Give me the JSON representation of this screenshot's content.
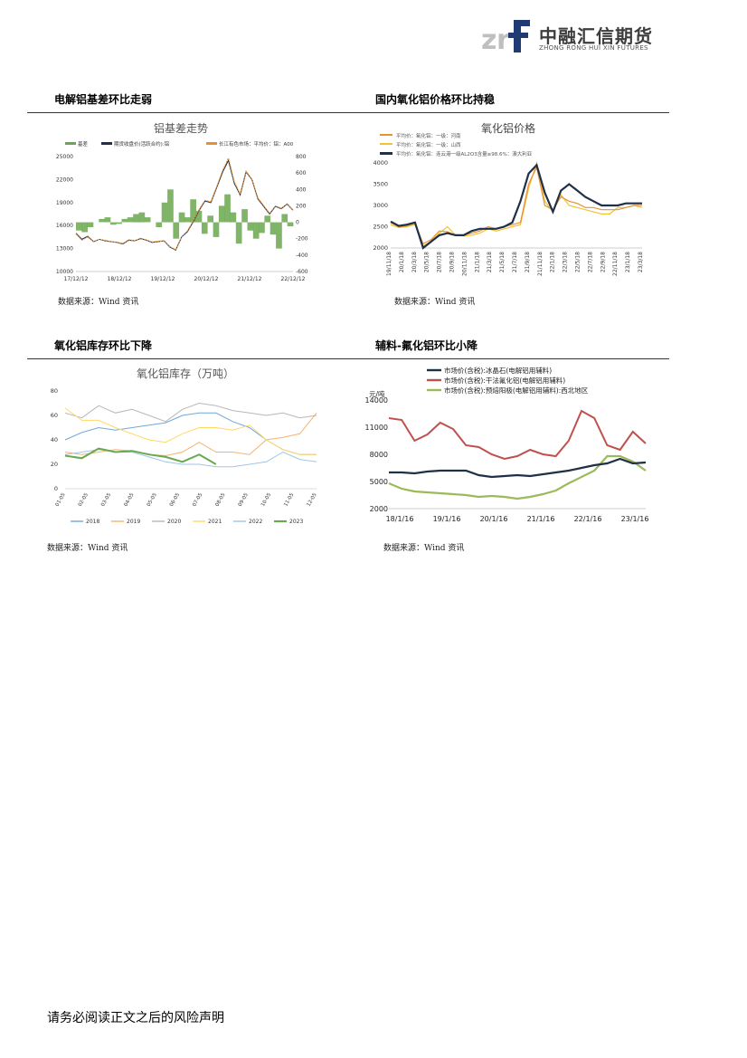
{
  "header": {
    "logo_mark": "zrf",
    "company_cn": "中融汇信期货",
    "company_en": "ZHONG RONG HUI XIN FUTURES"
  },
  "sections": [
    {
      "title": "电解铝基差环比走弱",
      "source": "数据来源：Wind 资讯"
    },
    {
      "title": "国内氧化铝价格环比持稳",
      "source": "数据来源：Wind 资讯"
    },
    {
      "title": "氧化铝库存环比下降",
      "source": "数据来源：Wind 资讯"
    },
    {
      "title": "辅料-氟化铝环比小降",
      "source": "数据来源：Wind 资讯"
    }
  ],
  "footer": {
    "text": "请务必阅读正文之后的风险声明"
  },
  "chart_data": [
    {
      "type": "line",
      "title": "铝基差走势",
      "legend": [
        "基差",
        "期货收盘价(活跃合约):铝",
        "长江有色市场：平均价：铝：A00"
      ],
      "legend_placement": "top",
      "x_ticks": [
        "17/12/12",
        "18/12/12",
        "19/12/12",
        "20/12/12",
        "21/12/12",
        "22/12/12"
      ],
      "y_left_ticks": [
        10000,
        13000,
        16000,
        19000,
        22000,
        25000
      ],
      "y_right_ticks": [
        -600,
        -400,
        -200,
        0,
        200,
        400,
        600,
        800
      ],
      "ylim_left": [
        10000,
        25000
      ],
      "ylim_right": [
        -600,
        800
      ],
      "colors": {
        "basis": "#6aa84f",
        "futures": "#1f3048",
        "spot": "#e69138"
      },
      "series": [
        {
          "name": "期货收盘价(活跃合约):铝",
          "values": [
            15000,
            14200,
            14600,
            13900,
            14200,
            14000,
            13900,
            13800,
            13600,
            14100,
            14000,
            14300,
            14100,
            13800,
            13900,
            14000,
            13200,
            12800,
            14500,
            15200,
            16500,
            18000,
            19200,
            19000,
            21000,
            23000,
            24500,
            21500,
            20000,
            23000,
            22000,
            19500,
            18500,
            17500,
            18500,
            18200,
            18800,
            18000
          ]
        },
        {
          "name": "长江有色市场：平均价：铝：A00",
          "values": [
            14900,
            14100,
            14500,
            13900,
            14200,
            14050,
            13900,
            13800,
            13650,
            14150,
            14000,
            14350,
            14100,
            13850,
            13950,
            14000,
            13250,
            12850,
            14550,
            15300,
            16600,
            18100,
            19300,
            19100,
            21100,
            23200,
            24800,
            21700,
            20100,
            23100,
            22000,
            19600,
            18600,
            17600,
            18550,
            18250,
            18850,
            18000
          ]
        },
        {
          "name": "基差",
          "values": [
            -100,
            -120,
            -60,
            0,
            40,
            60,
            -30,
            -20,
            40,
            60,
            100,
            120,
            60,
            0,
            -60,
            240,
            400,
            -200,
            120,
            60,
            280,
            140,
            -140,
            80,
            -180,
            200,
            340,
            120,
            -260,
            160,
            -100,
            -200,
            -130,
            80,
            -150,
            -320,
            100,
            -50
          ]
        }
      ]
    },
    {
      "type": "line",
      "title": "氧化铝价格",
      "legend": [
        "平均价：氧化铝：一级：河南",
        "平均价：氧化铝：一级：山西",
        "平均价：氧化铝：连云港一级AL2O3含量≥98.6%：澳大利亚"
      ],
      "legend_placement": "top-left",
      "x_ticks": [
        "19/11/18",
        "20/1/18",
        "20/3/18",
        "20/5/18",
        "20/7/18",
        "20/9/18",
        "20/11/18",
        "21/1/18",
        "21/3/18",
        "21/5/18",
        "21/7/18",
        "21/9/18",
        "21/11/18",
        "22/1/18",
        "22/3/18",
        "22/5/18",
        "22/7/18",
        "22/9/18",
        "22/11/18",
        "23/1/18",
        "23/3/18"
      ],
      "y_ticks": [
        2000,
        2500,
        3000,
        3500,
        4000
      ],
      "ylim": [
        2000,
        4000
      ],
      "colors": {
        "henan": "#e69138",
        "shanxi": "#f1c232",
        "australia": "#1f3048"
      },
      "series": [
        {
          "name": "平均价：氧化铝：一级：河南",
          "values": [
            2600,
            2500,
            2520,
            2580,
            2100,
            2200,
            2400,
            2380,
            2300,
            2300,
            2350,
            2400,
            2500,
            2450,
            2500,
            2550,
            2600,
            3500,
            3900,
            3000,
            2900,
            3200,
            3100,
            3050,
            2950,
            2950,
            2900,
            2900,
            2900,
            2950,
            3000,
            3000
          ]
        },
        {
          "name": "平均价：氧化铝：一级：山西",
          "values": [
            2550,
            2480,
            2500,
            2550,
            2050,
            2150,
            2350,
            2500,
            2300,
            2280,
            2300,
            2350,
            2450,
            2400,
            2450,
            2500,
            2550,
            3400,
            4000,
            3100,
            2850,
            3250,
            3000,
            2950,
            2900,
            2850,
            2800,
            2800,
            2950,
            2950,
            3000,
            2950
          ]
        },
        {
          "name": "平均价：氧化铝：连云港一级AL2O3含量≥98.6%：澳大利亚",
          "values": [
            2620,
            2520,
            2550,
            2600,
            2000,
            2150,
            2300,
            2350,
            2300,
            2300,
            2400,
            2450,
            2450,
            2450,
            2500,
            2600,
            3100,
            3750,
            3950,
            3300,
            2850,
            3350,
            3500,
            3350,
            3200,
            3100,
            3000,
            3000,
            3000,
            3050,
            3050,
            3050
          ]
        }
      ]
    },
    {
      "type": "line",
      "title": "氧化铝库存（万吨）",
      "legend": [
        "2018",
        "2019",
        "2020",
        "2021",
        "2022",
        "2023"
      ],
      "legend_placement": "bottom",
      "x_ticks": [
        "01-05",
        "02-05",
        "03-05",
        "04-05",
        "05-05",
        "06-05",
        "07-05",
        "08-05",
        "09-05",
        "10-05",
        "11-05",
        "12-05"
      ],
      "y_ticks": [
        0,
        20,
        40,
        60,
        80
      ],
      "ylim": [
        0,
        80
      ],
      "colors": {
        "2018": "#6fa8dc",
        "2019": "#f6b26b",
        "2020": "#b7b7b7",
        "2021": "#ffd966",
        "2022": "#9fc5e8",
        "2023": "#6aa84f"
      },
      "series": [
        {
          "name": "2018",
          "values": [
            40,
            46,
            50,
            48,
            50,
            52,
            54,
            60,
            62,
            62,
            55,
            50,
            40,
            32,
            28,
            28
          ]
        },
        {
          "name": "2019",
          "values": [
            30,
            28,
            30,
            32,
            31,
            28,
            27,
            30,
            38,
            30,
            30,
            28,
            40,
            42,
            45,
            62
          ]
        },
        {
          "name": "2020",
          "values": [
            62,
            58,
            68,
            62,
            65,
            60,
            55,
            65,
            70,
            68,
            64,
            62,
            60,
            62,
            58,
            60
          ]
        },
        {
          "name": "2021",
          "values": [
            66,
            56,
            56,
            50,
            45,
            40,
            38,
            45,
            50,
            50,
            48,
            52,
            40,
            32,
            28,
            28
          ]
        },
        {
          "name": "2022",
          "values": [
            28,
            30,
            32,
            30,
            30,
            26,
            22,
            20,
            20,
            18,
            18,
            20,
            22,
            30,
            24,
            22
          ]
        },
        {
          "name": "2023",
          "values": [
            27,
            25,
            33,
            30,
            31,
            28,
            26,
            22,
            28,
            20
          ]
        }
      ]
    },
    {
      "type": "line",
      "title": "",
      "ylabel": "元/吨",
      "legend": [
        "市场价(含税):冰晶石(电解铝用辅料)",
        "市场价(含税):干法氟化铝(电解铝用辅料)",
        "市场价(含税):预焙阳极(电解铝用辅料):西北地区"
      ],
      "legend_placement": "top",
      "x_ticks": [
        "18/1/16",
        "19/1/16",
        "20/1/16",
        "21/1/16",
        "22/1/16",
        "23/1/16"
      ],
      "y_ticks": [
        2000,
        5000,
        8000,
        11000,
        14000
      ],
      "ylim": [
        2000,
        14000
      ],
      "colors": {
        "cryolite": "#1f3048",
        "aluminum_fluoride": "#c0504d",
        "anode": "#9bbb59"
      },
      "series": [
        {
          "name": "市场价(含税):冰晶石(电解铝用辅料)",
          "values": [
            6000,
            6000,
            5900,
            6100,
            6200,
            6200,
            6200,
            5700,
            5500,
            5600,
            5700,
            5600,
            5800,
            6000,
            6200,
            6500,
            6800,
            7000,
            7500,
            7000,
            7100
          ]
        },
        {
          "name": "市场价(含税):干法氟化铝(电解铝用辅料)",
          "values": [
            12000,
            11800,
            9500,
            10200,
            11500,
            10800,
            9000,
            8800,
            8000,
            7500,
            7800,
            8500,
            8000,
            7800,
            9500,
            12800,
            12000,
            9000,
            8500,
            10500,
            9200
          ]
        },
        {
          "name": "市场价(含税):预焙阳极(电解铝用辅料):西北地区",
          "values": [
            4800,
            4200,
            3900,
            3800,
            3700,
            3600,
            3500,
            3300,
            3400,
            3300,
            3100,
            3300,
            3600,
            4000,
            4800,
            5500,
            6200,
            7800,
            7800,
            7200,
            6200
          ]
        }
      ]
    }
  ]
}
